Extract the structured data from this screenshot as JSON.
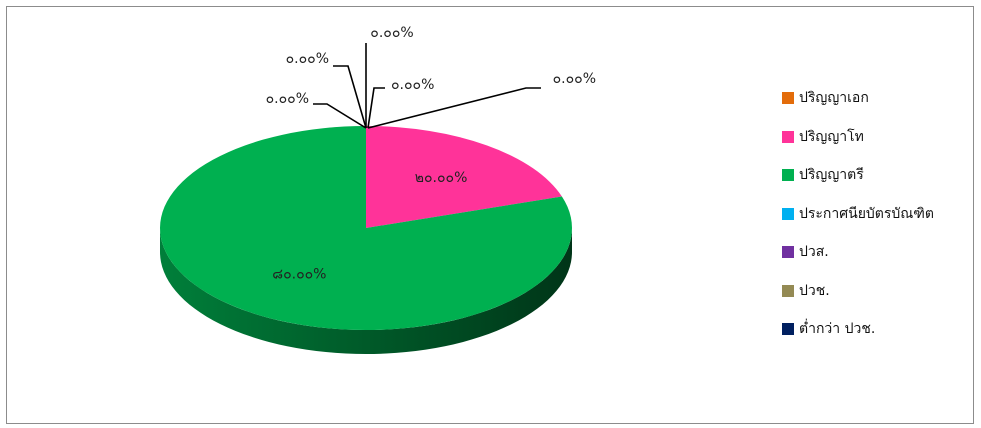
{
  "chart_data": {
    "type": "pie",
    "title": "",
    "categories": [
      "ปริญญาเอก",
      "ปริญญาโท",
      "ปริญญาตรี",
      "ประกาศนียบัตรบัณฑิต",
      "ปวส.",
      "ปวช.",
      "ต่ำกว่า ปวช."
    ],
    "values": [
      0,
      20,
      80,
      0,
      0,
      0,
      0
    ],
    "data_labels": [
      "๐.๐๐%",
      "๒๐.๐๐%",
      "๘๐.๐๐%",
      "๐.๐๐%",
      "๐.๐๐%",
      "๐.๐๐%",
      "๐.๐๐%"
    ],
    "colors": [
      "#e36c0a",
      "#ff3399",
      "#00b050",
      "#00b0f0",
      "#7030a0",
      "#948a54",
      "#002060"
    ],
    "legend_position": "right",
    "style": "3d-pie"
  }
}
